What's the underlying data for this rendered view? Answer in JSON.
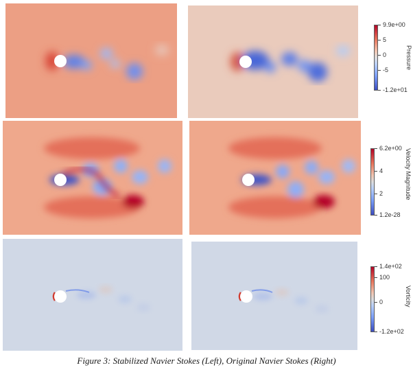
{
  "colorbars": [
    {
      "title": "Pressure",
      "ticks": [
        "9.9e+00",
        "5",
        "0",
        "-5",
        "-1.2e+01"
      ]
    },
    {
      "title": "Velocity Magnitude",
      "ticks": [
        "6.2e+00",
        "4",
        "2",
        "1.2e-28"
      ]
    },
    {
      "title": "Vorticity",
      "ticks": [
        "1.4e+02",
        "100",
        "0",
        "-1.2e+02"
      ]
    }
  ],
  "caption": "Figure 3: Stabilized Navier Stokes (Left), Original Navier Stokes (Right)",
  "colors": {
    "red": "#b40426",
    "salmon": "#ec8f70",
    "neutral": "#dddddd",
    "blue": "#3b4cc0",
    "vorticity_bg": "#d0d8e6"
  }
}
